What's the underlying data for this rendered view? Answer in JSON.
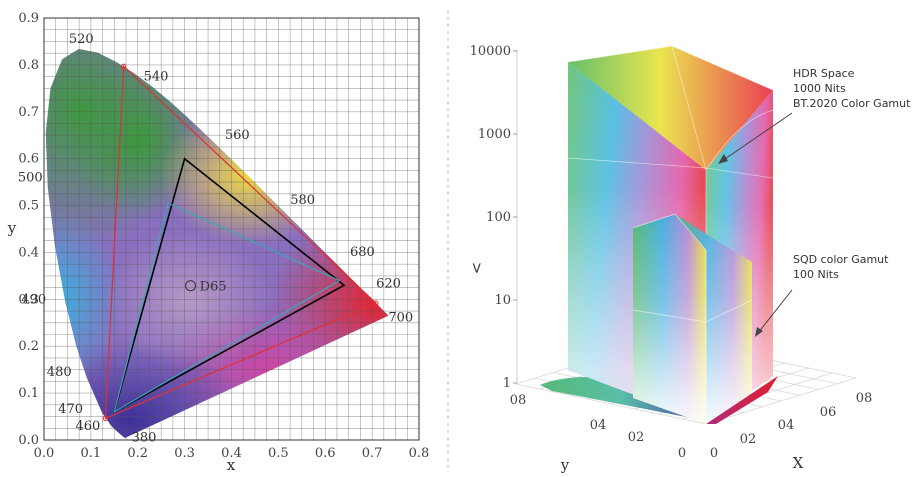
{
  "chart_data": [
    {
      "type": "scatter",
      "xlabel": "x",
      "ylabel": "y",
      "xlim": [
        0.0,
        0.8
      ],
      "ylim": [
        0.0,
        0.9
      ],
      "x_ticks": [
        "0.0",
        "0.1",
        "0.2",
        "0.3",
        "0.4",
        "0.5",
        "0.6",
        "0.7",
        "0.8"
      ],
      "y_ticks": [
        "0.0",
        "0.1",
        "0.2",
        "0.3",
        "0.4",
        "0.5",
        "0.6",
        "0.7",
        "0.8",
        "0.9"
      ],
      "grid": true,
      "spectral_locus": [
        [
          0.1741,
          0.005
        ],
        [
          0.1738,
          0.0049
        ],
        [
          0.1736,
          0.0049
        ],
        [
          0.1726,
          0.0048
        ],
        [
          0.1714,
          0.0051
        ],
        [
          0.1689,
          0.0069
        ],
        [
          0.1644,
          0.0109
        ],
        [
          0.1566,
          0.0177
        ],
        [
          0.144,
          0.0297
        ],
        [
          0.1241,
          0.0578
        ],
        [
          0.0913,
          0.1327
        ],
        [
          0.0687,
          0.2007
        ],
        [
          0.0454,
          0.295
        ],
        [
          0.0235,
          0.4127
        ],
        [
          0.0082,
          0.5384
        ],
        [
          0.0039,
          0.6548
        ],
        [
          0.0139,
          0.7502
        ],
        [
          0.0389,
          0.812
        ],
        [
          0.0743,
          0.8338
        ],
        [
          0.1142,
          0.8262
        ],
        [
          0.1547,
          0.8059
        ],
        [
          0.1929,
          0.7816
        ],
        [
          0.2296,
          0.7543
        ],
        [
          0.2658,
          0.7243
        ],
        [
          0.3016,
          0.6923
        ],
        [
          0.3373,
          0.6589
        ],
        [
          0.3731,
          0.6245
        ],
        [
          0.4087,
          0.5896
        ],
        [
          0.4441,
          0.5547
        ],
        [
          0.4788,
          0.5202
        ],
        [
          0.5125,
          0.4866
        ],
        [
          0.5448,
          0.4544
        ],
        [
          0.5752,
          0.4242
        ],
        [
          0.6029,
          0.3965
        ],
        [
          0.627,
          0.3725
        ],
        [
          0.6482,
          0.3514
        ],
        [
          0.6658,
          0.334
        ],
        [
          0.6801,
          0.3197
        ],
        [
          0.6915,
          0.3083
        ],
        [
          0.7006,
          0.2993
        ],
        [
          0.7079,
          0.292
        ],
        [
          0.714,
          0.2859
        ],
        [
          0.719,
          0.2809
        ],
        [
          0.723,
          0.277
        ],
        [
          0.726,
          0.274
        ],
        [
          0.7283,
          0.2717
        ],
        [
          0.73,
          0.27
        ],
        [
          0.7311,
          0.2689
        ],
        [
          0.732,
          0.268
        ],
        [
          0.7327,
          0.2673
        ],
        [
          0.7334,
          0.2666
        ],
        [
          0.734,
          0.266
        ],
        [
          0.7344,
          0.2656
        ],
        [
          0.7346,
          0.2654
        ],
        [
          0.7347,
          0.2653
        ]
      ],
      "wavelength_labels": [
        {
          "label": "380",
          "x": 0.1741,
          "y": 0.005
        },
        {
          "label": "460",
          "x": 0.144,
          "y": 0.0297
        },
        {
          "label": "470",
          "x": 0.1241,
          "y": 0.0578
        },
        {
          "label": "480",
          "x": 0.0913,
          "y": 0.1327
        },
        {
          "label": "490",
          "x": 0.0454,
          "y": 0.295
        },
        {
          "label": "500",
          "x": 0.0082,
          "y": 0.5384
        },
        {
          "label": "520",
          "x": 0.0743,
          "y": 0.8338
        },
        {
          "label": "540",
          "x": 0.2296,
          "y": 0.7543
        },
        {
          "label": "560",
          "x": 0.3731,
          "y": 0.6245
        },
        {
          "label": "580",
          "x": 0.5125,
          "y": 0.4866
        },
        {
          "label": "620",
          "x": 0.6915,
          "y": 0.3083
        },
        {
          "label": "680",
          "x": 0.64,
          "y": 0.38
        },
        {
          "label": "700",
          "x": 0.7347,
          "y": 0.2653
        }
      ],
      "series": [
        {
          "color": "#e03030",
          "points": [
            [
              0.708,
              0.292
            ],
            [
              0.17,
              0.797
            ],
            [
              0.131,
              0.046
            ]
          ]
        },
        {
          "color": "#000000",
          "points": [
            [
              0.64,
              0.33
            ],
            [
              0.3,
              0.6
            ],
            [
              0.15,
              0.06
            ]
          ]
        },
        {
          "color": "#3aa6b8",
          "points": [
            [
              0.63,
              0.34
            ],
            [
              0.265,
              0.505
            ],
            [
              0.15,
              0.06
            ]
          ]
        }
      ],
      "white_point": {
        "label": "D65",
        "x": 0.3127,
        "y": 0.329
      }
    },
    {
      "type": "3d-volume",
      "ylabel": "y",
      "xlabel": "X",
      "vertical_axis_label": ">",
      "z_scale": "log",
      "z_ticks": [
        "1",
        "10",
        "100",
        "1000",
        "10000"
      ],
      "floor_x_ticks": [
        "0",
        "02",
        "04",
        "06",
        "08"
      ],
      "floor_y_ticks": [
        "0",
        "02",
        "04",
        "08"
      ],
      "annotations": [
        {
          "lines": [
            "HDR Space",
            "1000 Nits",
            "BT.2020 Color Gamut"
          ]
        },
        {
          "lines": [
            "SQD color Gamut",
            "100 Nits"
          ]
        }
      ]
    }
  ]
}
